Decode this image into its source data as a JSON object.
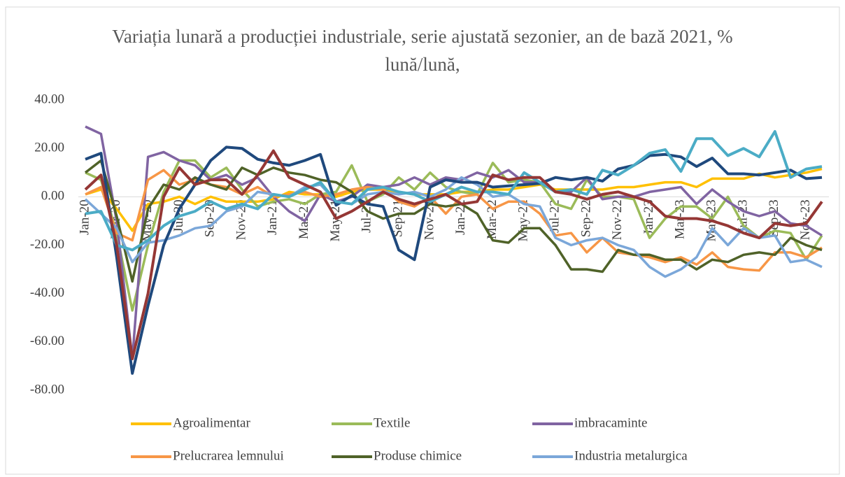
{
  "chart_data": {
    "type": "line",
    "title": "Variația lunară a producției industriale, serie ajustată sezonier, an de bază 2021, % lună/lună,",
    "categories": [
      "Jan-20",
      null,
      "Mar-20",
      null,
      "May-20",
      null,
      "Jul-20",
      null,
      "Sep-20",
      null,
      "Nov-20",
      null,
      "Jan-21",
      null,
      "Mar-21",
      null,
      "May-21",
      null,
      "Jul-21",
      null,
      "Sep-21",
      null,
      "Nov-21",
      null,
      "Jan-22",
      null,
      "Mar-22",
      null,
      "May-22",
      null,
      "Jul-22",
      null,
      "Sep-22",
      null,
      "Nov-22",
      null,
      "Jan-23",
      null,
      "Mar-23",
      null,
      "May-23",
      null,
      "Jul-23",
      null,
      "Sep-23",
      null,
      "Nov-23",
      null
    ],
    "ylim": [
      -80,
      40
    ],
    "yticks": [
      {
        "value": 40,
        "label": "40.00"
      },
      {
        "value": 20,
        "label": "20.00"
      },
      {
        "value": 0,
        "label": "0.00"
      },
      {
        "value": -20,
        "label": "-20.00"
      },
      {
        "value": -40,
        "label": "-40.00"
      },
      {
        "value": -60,
        "label": "-60.00"
      },
      {
        "value": -80,
        "label": "-80.00"
      }
    ],
    "grid": false,
    "series": [
      {
        "name": "Agroalimentar",
        "color": "#ffc000",
        "values": [
          1,
          3,
          -5,
          -14,
          -3,
          -2,
          0,
          -3,
          0,
          -2,
          -2,
          -2,
          -1,
          2,
          1,
          1,
          0,
          2,
          3,
          3,
          2,
          1,
          1,
          1,
          2,
          2,
          3,
          3,
          4,
          5,
          3,
          3,
          3,
          3,
          4,
          4,
          5,
          6,
          6,
          4,
          7.5,
          7.5,
          7.5,
          9.5,
          8,
          9,
          10,
          11.5
        ]
      },
      {
        "name": "Textile",
        "color": "#9bbb59",
        "values": [
          10,
          7,
          -15,
          -47,
          -20,
          2,
          15,
          15,
          8,
          12,
          3,
          -4,
          -2,
          -1,
          -3,
          1,
          2,
          13,
          -2,
          1,
          8,
          3,
          10,
          4,
          2,
          1,
          14,
          6,
          7,
          6,
          -3,
          -5,
          7,
          0,
          0,
          -1,
          -17,
          -9,
          -4,
          -4,
          -9,
          0,
          -12,
          -17,
          -14,
          -15,
          -26,
          -16
        ]
      },
      {
        "name": "imbracaminte",
        "color": "#8064a2",
        "values": [
          29,
          26,
          -10,
          -67,
          16.5,
          18.5,
          15,
          13,
          7,
          9,
          5,
          8,
          0,
          -6,
          -10,
          1,
          -2,
          0,
          5,
          4,
          5,
          8,
          5,
          8,
          7,
          10,
          8,
          11,
          6,
          6,
          2,
          2,
          8,
          -1,
          0,
          0,
          2,
          3,
          4,
          -3,
          3,
          -2,
          -6,
          -8,
          -6,
          -11,
          -12,
          -16
        ]
      },
      {
        "name": "Prelucrarea lemnului",
        "color": "#f79646",
        "values": [
          1,
          4,
          -15,
          -18,
          7,
          11,
          5,
          7,
          5,
          4,
          1,
          4,
          0,
          1,
          2,
          0,
          1,
          3,
          4,
          3,
          -2,
          -4,
          0,
          -7,
          0,
          1,
          -5,
          -2,
          -2,
          -7,
          -16,
          -15,
          -23,
          -17,
          -23,
          -24,
          -25,
          -27,
          -25,
          -28,
          -23,
          -29,
          -30,
          -30.5,
          -23,
          -23,
          -25,
          -21
        ]
      },
      {
        "name": "Produse chimice",
        "color": "#4f6228",
        "values": [
          10,
          15,
          -8,
          -35,
          -5,
          5,
          3,
          8,
          5,
          3,
          12,
          9,
          12,
          10,
          9,
          7,
          6,
          2,
          -6,
          -9,
          -7,
          -7,
          -3,
          -4,
          -3,
          -7,
          -18,
          -19,
          -13,
          -13,
          -20,
          -30,
          -30,
          -31,
          -22,
          -24,
          -24,
          -26,
          -26,
          -30,
          -26,
          -27,
          -24,
          -23,
          -24,
          -17,
          -20,
          -22
        ]
      },
      {
        "name": "Industria metalurgica",
        "color": "#7ba7d9",
        "values": [
          -1,
          -7,
          -13,
          -27,
          -19,
          -18,
          -16,
          -13,
          -12,
          -6,
          -4,
          2,
          1,
          0,
          4,
          5,
          -2,
          -3,
          1,
          2,
          1,
          2,
          0,
          3,
          8,
          5,
          0,
          1,
          -3,
          -4,
          -17,
          -20,
          -18,
          -17,
          -20,
          -22,
          -29,
          -33,
          -30,
          -25,
          -13,
          -20,
          -13,
          -17,
          -16,
          -27,
          -26,
          -29
        ]
      },
      {
        "color": "#1f497d",
        "values": [
          15.5,
          18,
          -25,
          -73,
          -45,
          -20,
          -5,
          5,
          15,
          20.5,
          20,
          15.5,
          14,
          13,
          15,
          17.5,
          -3.5,
          0.5,
          -3,
          -4,
          -22,
          -26,
          4,
          7,
          6,
          6,
          4,
          4.5,
          5,
          5.5,
          8,
          7,
          8,
          6.5,
          11.5,
          13,
          17,
          17.5,
          16.5,
          12.5,
          16,
          9.5,
          9.5,
          9,
          10,
          11,
          7.5,
          8
        ]
      },
      {
        "color": "#4bacc6",
        "values": [
          -7,
          -6,
          -20,
          -22,
          -18,
          -12,
          -8,
          -6,
          -2,
          -5,
          -3,
          -5,
          1,
          0,
          3,
          6,
          -2,
          -3,
          3,
          4,
          2,
          1,
          -2,
          1,
          4,
          2,
          2,
          1,
          10,
          6,
          2,
          3,
          1,
          11,
          9,
          13,
          18,
          19.5,
          10.5,
          24,
          24,
          17,
          20,
          16.5,
          27,
          8,
          11.5,
          12.5
        ]
      },
      {
        "color": "#953735",
        "values": [
          3,
          9,
          -20,
          -67,
          -40,
          0,
          12,
          5,
          7,
          7,
          1,
          9,
          19,
          8,
          5,
          2,
          -9,
          -6,
          -2,
          2,
          -1,
          -3,
          -1,
          1,
          -3,
          -2,
          9,
          7,
          8,
          8,
          2,
          1,
          -1,
          1,
          2,
          0,
          -2,
          -8,
          -9,
          -9,
          -10,
          -12,
          -15,
          -17,
          -11,
          -12,
          -11,
          -2
        ]
      }
    ]
  }
}
